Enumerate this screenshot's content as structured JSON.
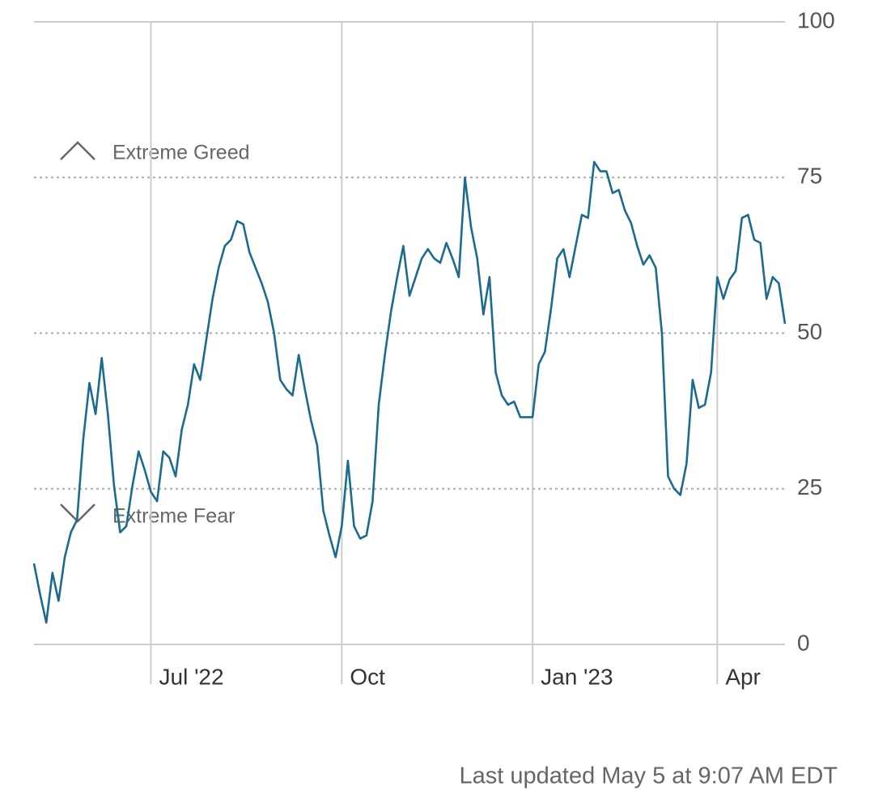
{
  "chart_data": {
    "type": "line",
    "annotations": [
      "Extreme Greed",
      "Extreme Fear"
    ],
    "footer": "Last updated May 5 at 9:07 AM EDT",
    "categories": [
      null,
      null,
      null,
      null,
      null,
      null,
      null,
      null,
      null,
      null,
      null,
      null,
      null,
      null,
      null,
      null,
      null,
      null,
      null,
      "Jul '22",
      null,
      null,
      null,
      null,
      null,
      null,
      null,
      null,
      null,
      null,
      null,
      null,
      null,
      null,
      null,
      null,
      null,
      null,
      null,
      null,
      null,
      null,
      null,
      null,
      null,
      null,
      null,
      null,
      null,
      null,
      "Oct",
      null,
      null,
      null,
      null,
      null,
      null,
      null,
      null,
      null,
      null,
      null,
      null,
      null,
      null,
      null,
      null,
      null,
      null,
      null,
      null,
      null,
      null,
      null,
      null,
      null,
      null,
      null,
      null,
      null,
      null,
      "Jan '23",
      null,
      null,
      null,
      null,
      null,
      null,
      null,
      null,
      null,
      null,
      null,
      null,
      null,
      null,
      null,
      null,
      null,
      null,
      null,
      null,
      null,
      null,
      null,
      null,
      null,
      null,
      null,
      null,
      null,
      "Apr",
      null,
      null,
      null,
      null,
      null,
      null,
      null,
      null,
      null,
      null,
      null
    ],
    "series": [
      {
        "color": "#1b6a8f",
        "values": [
          13,
          8,
          3.5,
          11.5,
          7,
          14,
          18,
          20,
          33,
          42,
          37,
          46,
          37,
          25.5,
          18,
          19,
          25.5,
          31,
          28,
          24.5,
          23,
          31,
          30,
          27,
          34.5,
          38.5,
          45,
          42.5,
          49,
          55.5,
          60.5,
          64,
          65,
          68,
          67.5,
          63,
          60.5,
          58,
          55,
          50,
          42.5,
          41,
          40,
          46.5,
          41,
          36,
          32,
          21.5,
          17.5,
          14,
          19,
          29.5,
          19,
          17,
          17.5,
          23,
          38.5,
          46.5,
          53.5,
          59,
          64,
          56,
          59,
          62,
          63.5,
          62,
          61.3,
          64.5,
          62,
          59,
          75,
          67,
          62,
          53,
          59,
          43.7,
          40,
          38.5,
          39,
          36.5,
          36.5,
          36.5,
          45,
          47,
          54,
          62,
          63.5,
          59,
          64,
          69,
          68.5,
          77.5,
          76,
          76,
          72.5,
          73,
          69.7,
          67.7,
          64,
          61,
          62.5,
          60.5,
          50,
          27,
          25,
          24,
          29,
          42.5,
          38,
          38.5,
          43.7,
          59,
          55.5,
          58.6,
          60,
          68.5,
          69,
          65,
          64.5,
          55.5,
          59,
          58,
          51.5
        ]
      }
    ],
    "ylim": [
      0,
      100
    ],
    "yticks": [
      0,
      25,
      50,
      75,
      100
    ],
    "grid": true
  }
}
